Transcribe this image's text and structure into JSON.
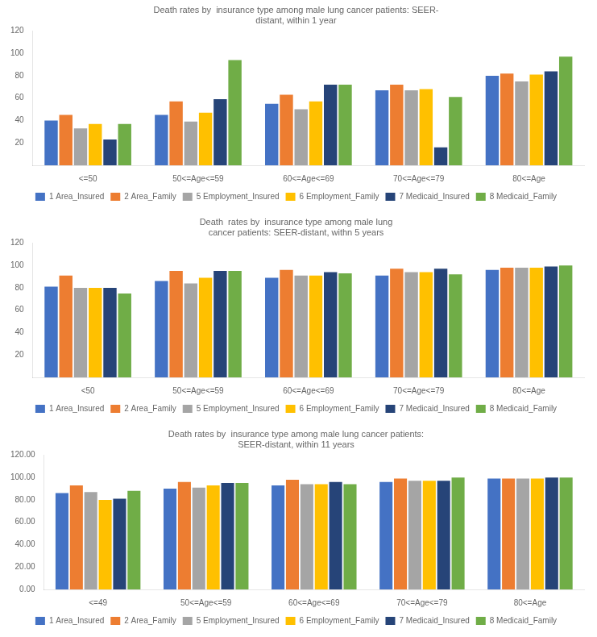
{
  "chart_data": [
    {
      "type": "bar",
      "title": "Death rates by  insurance type among male lung cancer patients: SEER-\ndistant, within 1 year",
      "categories": [
        "<=50",
        "50<=Age<=59",
        "60<=Age<=69",
        "70<=Age<=79",
        "80<=Age"
      ],
      "series": [
        {
          "name": "1 Area_Insured",
          "color": "#4472C4",
          "values": [
            40,
            45,
            55,
            67,
            80
          ]
        },
        {
          "name": "2 Area_Family",
          "color": "#ED7D31",
          "values": [
            45,
            57,
            63,
            72,
            82
          ]
        },
        {
          "name": "5 Employment_Insured",
          "color": "#A5A5A5",
          "values": [
            33,
            39,
            50,
            67,
            75
          ]
        },
        {
          "name": "6 Employment_Family",
          "color": "#FFC000",
          "values": [
            37,
            47,
            57,
            68,
            81
          ]
        },
        {
          "name": "7 Medicaid_Insured",
          "color": "#264478",
          "values": [
            23,
            59,
            72,
            16,
            84
          ]
        },
        {
          "name": "8 Medicaid_Family",
          "color": "#70AD47",
          "values": [
            37,
            94,
            72,
            61,
            97
          ]
        }
      ],
      "ylim": [
        0,
        120
      ],
      "yticks": [
        20,
        40,
        60,
        80,
        100,
        120
      ],
      "grid": false,
      "legend": "bottom"
    },
    {
      "type": "bar",
      "title": "Death  rates by  insurance type among male lung\ncancer patients: SEER-distant, withn 5 years",
      "categories": [
        "<50",
        "50<=Age<=59",
        "60<=Age<=69",
        "70<=Age<=79",
        "80<=Age"
      ],
      "series": [
        {
          "name": "1 Area_Insured",
          "color": "#4472C4",
          "values": [
            81,
            86,
            89,
            91,
            96
          ]
        },
        {
          "name": "2 Area_Family",
          "color": "#ED7D31",
          "values": [
            91,
            95,
            96,
            97,
            98
          ]
        },
        {
          "name": "5 Employment_Insured",
          "color": "#A5A5A5",
          "values": [
            80,
            84,
            91,
            94,
            98
          ]
        },
        {
          "name": "6 Employment_Family",
          "color": "#FFC000",
          "values": [
            80,
            89,
            91,
            94,
            98
          ]
        },
        {
          "name": "7 Medicaid_Insured",
          "color": "#264478",
          "values": [
            80,
            95,
            94,
            97,
            99
          ]
        },
        {
          "name": "8 Medicaid_Family",
          "color": "#70AD47",
          "values": [
            75,
            95,
            93,
            92,
            100
          ]
        }
      ],
      "ylim": [
        0,
        120
      ],
      "yticks": [
        20,
        40,
        60,
        80,
        100,
        120
      ],
      "grid": false,
      "legend": "bottom"
    },
    {
      "type": "bar",
      "title": "Death rates by  insurance type among male lung cancer patients:\nSEER-distant, within 11 years",
      "categories": [
        "<=49",
        "50<=Age<=59",
        "60<=Age<=69",
        "70<=Age<=79",
        "80<=Age"
      ],
      "series": [
        {
          "name": "1 Area_Insured",
          "color": "#4472C4",
          "values": [
            86,
            90,
            93,
            96,
            99
          ]
        },
        {
          "name": "2 Area_Family",
          "color": "#ED7D31",
          "values": [
            93,
            96,
            98,
            99,
            99
          ]
        },
        {
          "name": "5 Employment_Insured",
          "color": "#A5A5A5",
          "values": [
            87,
            91,
            94,
            97,
            99
          ]
        },
        {
          "name": "6 Employment_Family",
          "color": "#FFC000",
          "values": [
            80,
            93,
            94,
            97,
            99
          ]
        },
        {
          "name": "7 Medicaid_Insured",
          "color": "#264478",
          "values": [
            81,
            95,
            96,
            97,
            100
          ]
        },
        {
          "name": "8 Medicaid_Family",
          "color": "#70AD47",
          "values": [
            88,
            95,
            94,
            100,
            100
          ]
        }
      ],
      "ylim": [
        0,
        120
      ],
      "yticks": [
        {
          "value": 0,
          "label": "0.00"
        },
        {
          "value": 20,
          "label": "20.00"
        },
        {
          "value": 40,
          "label": "40.00"
        },
        {
          "value": 60,
          "label": "60.00"
        },
        {
          "value": 80,
          "label": "80.00"
        },
        {
          "value": 100,
          "label": "100.00"
        },
        {
          "value": 120,
          "label": "120.00"
        }
      ],
      "grid": false,
      "legend": "bottom"
    }
  ]
}
